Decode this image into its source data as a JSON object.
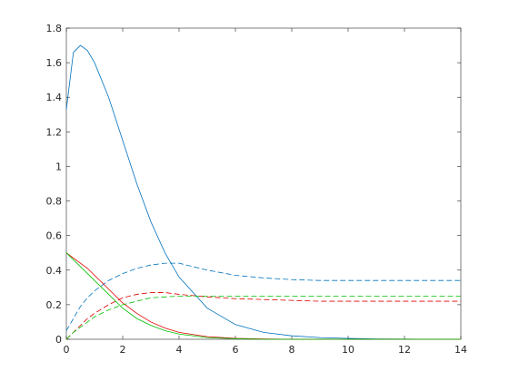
{
  "chart_data": {
    "type": "line",
    "x": [
      0,
      0.25,
      0.5,
      0.75,
      1,
      1.5,
      2,
      2.5,
      3,
      3.5,
      4,
      5,
      6,
      7,
      8,
      9,
      10,
      11,
      12,
      13,
      14
    ],
    "series": [
      {
        "color": "#0072bd",
        "dashed": false,
        "values": [
          1.33,
          1.66,
          1.7,
          1.67,
          1.6,
          1.4,
          1.15,
          0.9,
          0.68,
          0.5,
          0.36,
          0.18,
          0.085,
          0.04,
          0.02,
          0.01,
          0.005,
          0.002,
          0.001,
          0,
          0
        ]
      },
      {
        "color": "#0072bd",
        "dashed": true,
        "values": [
          0.05,
          0.12,
          0.19,
          0.24,
          0.28,
          0.34,
          0.38,
          0.41,
          0.43,
          0.44,
          0.44,
          0.4,
          0.37,
          0.355,
          0.345,
          0.34,
          0.34,
          0.34,
          0.34,
          0.34,
          0.34
        ]
      },
      {
        "color": "#e00000",
        "dashed": false,
        "values": [
          0.5,
          0.47,
          0.44,
          0.41,
          0.37,
          0.29,
          0.21,
          0.15,
          0.1,
          0.065,
          0.04,
          0.015,
          0.005,
          0.002,
          0,
          0,
          0,
          0,
          0,
          0,
          0
        ]
      },
      {
        "color": "#e00000",
        "dashed": true,
        "values": [
          0,
          0.04,
          0.08,
          0.12,
          0.15,
          0.2,
          0.24,
          0.26,
          0.27,
          0.27,
          0.26,
          0.245,
          0.235,
          0.23,
          0.225,
          0.22,
          0.22,
          0.22,
          0.22,
          0.22,
          0.22
        ]
      },
      {
        "color": "#00c000",
        "dashed": false,
        "values": [
          0.5,
          0.46,
          0.42,
          0.38,
          0.34,
          0.26,
          0.18,
          0.12,
          0.08,
          0.05,
          0.03,
          0.01,
          0.003,
          0,
          0,
          0,
          0,
          0,
          0,
          0,
          0
        ]
      },
      {
        "color": "#00c000",
        "dashed": true,
        "values": [
          0,
          0.04,
          0.07,
          0.1,
          0.13,
          0.17,
          0.2,
          0.22,
          0.24,
          0.245,
          0.25,
          0.25,
          0.25,
          0.25,
          0.25,
          0.25,
          0.25,
          0.25,
          0.25,
          0.25,
          0.25
        ]
      }
    ],
    "xlim": [
      0,
      14
    ],
    "xticks": [
      0,
      2,
      4,
      6,
      8,
      10,
      12,
      14
    ],
    "ylim": [
      0,
      1.8
    ],
    "yticks": [
      0,
      0.2,
      0.4,
      0.6,
      0.8,
      1,
      1.2,
      1.4,
      1.6,
      1.8
    ],
    "grid": false
  }
}
